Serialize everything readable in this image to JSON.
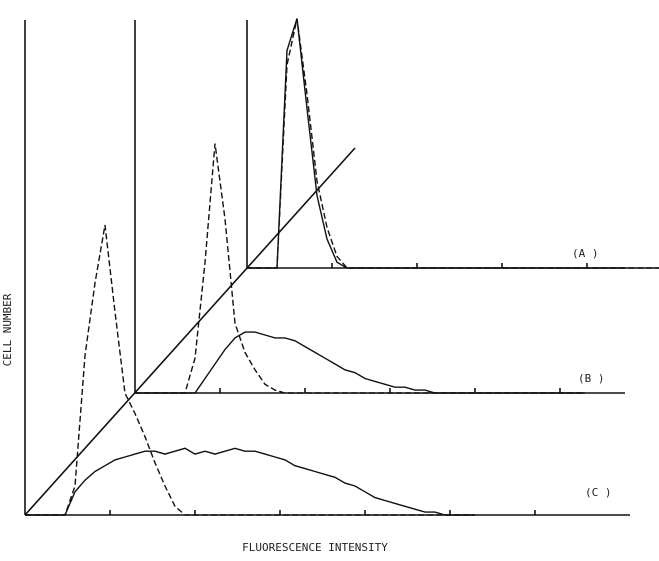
{
  "chart_data": {
    "type": "line",
    "y_label": "CELL NUMBER",
    "x_label": "FLUORESCENCE INTENSITY",
    "x": [
      0,
      2,
      4,
      6,
      8,
      10,
      12,
      14,
      16,
      18,
      20,
      22,
      24,
      26,
      28,
      30,
      32,
      34,
      36,
      38,
      40,
      42,
      44,
      46,
      48,
      50,
      52,
      54,
      56,
      58,
      60,
      62,
      64,
      66,
      68,
      70,
      72,
      74,
      76,
      78,
      80,
      82,
      84,
      86,
      88,
      90
    ],
    "xlim": [
      0,
      100
    ],
    "ylim": [
      0,
      100
    ],
    "panels": [
      {
        "label": "(A )",
        "series": [
          {
            "dashed": false,
            "color": "#111111",
            "values": [
              0,
              0,
              0,
              0,
              75,
              86,
              55,
              25,
              10,
              2,
              0,
              0,
              0,
              0,
              0,
              0,
              0,
              0,
              0,
              0,
              0,
              0,
              0,
              0,
              0,
              0,
              0,
              0,
              0,
              0,
              0,
              0,
              0,
              0,
              0,
              0,
              0,
              0,
              0,
              0,
              0,
              0,
              0,
              0,
              0,
              0
            ]
          },
          {
            "dashed": true,
            "color": "#111111",
            "values": [
              0,
              0,
              0,
              0,
              70,
              86,
              60,
              30,
              14,
              4,
              0,
              0,
              0,
              0,
              0,
              0,
              0,
              0,
              0,
              0,
              0,
              0,
              0,
              0,
              0,
              0,
              0,
              0,
              0,
              0,
              0,
              0,
              0,
              0,
              0,
              0,
              0,
              0,
              0,
              0,
              0,
              0,
              0,
              0,
              0,
              0
            ]
          }
        ]
      },
      {
        "label": "(B )",
        "series": [
          {
            "dashed": false,
            "color": "#111111",
            "values": [
              0,
              0,
              0,
              0,
              0,
              0,
              0,
              5,
              10,
              15,
              19,
              21,
              21,
              20,
              19,
              19,
              18,
              16,
              14,
              12,
              10,
              8,
              7,
              5,
              4,
              3,
              2,
              2,
              1,
              1,
              0,
              0,
              0,
              0,
              0,
              0,
              0,
              0,
              0,
              0,
              0,
              0,
              0,
              0,
              0,
              0
            ]
          },
          {
            "dashed": true,
            "color": "#111111",
            "values": [
              0,
              0,
              0,
              0,
              0,
              0,
              12,
              45,
              86,
              60,
              24,
              14,
              8,
              3,
              1,
              0,
              0,
              0,
              0,
              0,
              0,
              0,
              0,
              0,
              0,
              0,
              0,
              0,
              0,
              0,
              0,
              0,
              0,
              0,
              0,
              0,
              0,
              0,
              0,
              0,
              0,
              0,
              0,
              0,
              0,
              0
            ]
          }
        ]
      },
      {
        "label": "(C )",
        "series": [
          {
            "dashed": false,
            "color": "#111111",
            "values": [
              0,
              0,
              0,
              0,
              0,
              8,
              12,
              15,
              17,
              19,
              20,
              21,
              22,
              22,
              21,
              22,
              23,
              21,
              22,
              21,
              22,
              23,
              22,
              22,
              21,
              20,
              19,
              17,
              16,
              15,
              14,
              13,
              11,
              10,
              8,
              6,
              5,
              4,
              3,
              2,
              1,
              1,
              0,
              0,
              0,
              0
            ]
          },
          {
            "dashed": true,
            "color": "#111111",
            "values": [
              0,
              0,
              0,
              0,
              0,
              10,
              55,
              80,
              100,
              70,
              42,
              35,
              27,
              18,
              10,
              3,
              0,
              0,
              0,
              0,
              0,
              0,
              0,
              0,
              0,
              0,
              0,
              0,
              0,
              0,
              0,
              0,
              0,
              0,
              0,
              0,
              0,
              0,
              0,
              0,
              0,
              0,
              0,
              0,
              0,
              0
            ]
          }
        ]
      }
    ]
  }
}
